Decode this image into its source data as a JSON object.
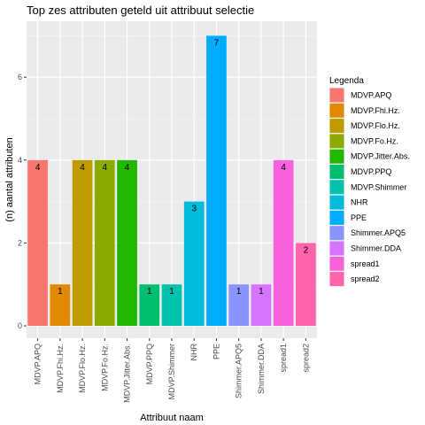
{
  "chart_data": {
    "type": "bar",
    "title": "Top zes attributen geteld uit attribuut selectie",
    "xlabel": "Attribuut naam",
    "ylabel": "(n) aantal attributen",
    "ylim": [
      0,
      7
    ],
    "yticks": [
      0,
      2,
      4,
      6
    ],
    "grid": true,
    "legend": {
      "title": "Legenda",
      "placement": "right"
    },
    "categories": [
      "MDVP.APQ",
      "MDVP.Fhi.Hz.",
      "MDVP.Flo.Hz.",
      "MDVP.Fo.Hz.",
      "MDVP.Jitter.Abs.",
      "MDVP.PPQ",
      "MDVP.Shimmer",
      "NHR",
      "PPE",
      "Shimmer.APQ5",
      "Shimmer.DDA",
      "spread1",
      "spread2"
    ],
    "values": [
      4,
      1,
      4,
      4,
      4,
      1,
      1,
      3,
      7,
      1,
      1,
      4,
      2
    ],
    "data_labels": [
      "4",
      "1",
      "4",
      "4",
      "4",
      "1",
      "1",
      "3",
      "7",
      "1",
      "1",
      "4",
      "2"
    ],
    "colors": [
      "#F8766D",
      "#E18A00",
      "#BE9C00",
      "#8CAB00",
      "#24B700",
      "#00BE70",
      "#00C1AB",
      "#00BBDA",
      "#00ACFC",
      "#8B93FF",
      "#D575FE",
      "#F962DD",
      "#FF65AC"
    ]
  }
}
